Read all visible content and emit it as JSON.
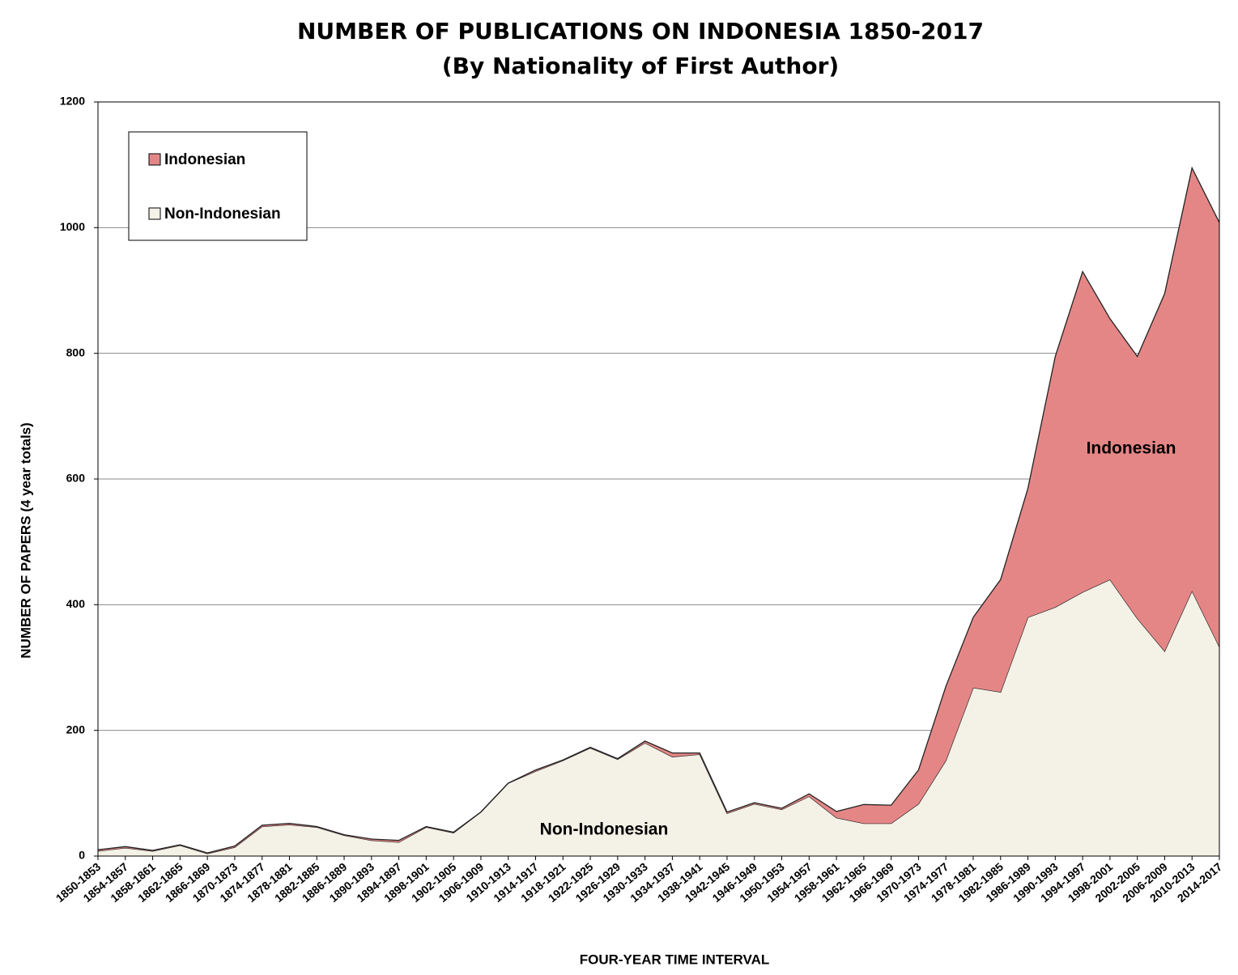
{
  "chart_data": {
    "type": "stacked-area",
    "title": "NUMBER OF PUBLICATIONS ON INDONESIA 1850-2017",
    "subtitle": "(By Nationality of First Author)",
    "x_label": "FOUR-YEAR TIME INTERVAL",
    "y_label": "NUMBER OF PAPERS (4 year totals)",
    "categories": [
      "1850-1853",
      "1854-1857",
      "1858-1861",
      "1862-1865",
      "1866-1869",
      "1870-1873",
      "1874-1877",
      "1878-1881",
      "1882-1885",
      "1886-1889",
      "1890-1893",
      "1894-1897",
      "1898-1901",
      "1902-1905",
      "1906-1909",
      "1910-1913",
      "1914-1917",
      "1918-1921",
      "1922-1925",
      "1926-1929",
      "1930-1933",
      "1934-1937",
      "1938-1941",
      "1942-1945",
      "1946-1949",
      "1950-1953",
      "1954-1957",
      "1958-1961",
      "1962-1965",
      "1966-1969",
      "1970-1973",
      "1974-1977",
      "1978-1981",
      "1982-1985",
      "1986-1989",
      "1990-1993",
      "1994-1997",
      "1998-2001",
      "2002-2005",
      "2006-2009",
      "2010-2013",
      "2014-2017"
    ],
    "series": [
      {
        "name": "Non-Indonesian",
        "color": "#f4f1e6",
        "values": [
          8,
          13,
          8,
          17,
          4,
          14,
          47,
          50,
          46,
          33,
          25,
          22,
          46,
          37,
          70,
          116,
          135,
          152,
          172,
          154,
          180,
          158,
          162,
          68,
          83,
          74,
          95,
          61,
          52,
          52,
          83,
          152,
          268,
          261,
          380,
          396,
          420,
          440,
          378,
          326,
          422,
          333
        ]
      },
      {
        "name": "Indonesian",
        "color": "#e58686",
        "values": [
          2,
          2,
          1,
          1,
          1,
          2,
          2,
          2,
          1,
          1,
          2,
          3,
          1,
          1,
          0,
          0,
          2,
          1,
          1,
          1,
          3,
          6,
          2,
          2,
          2,
          2,
          4,
          10,
          30,
          29,
          54,
          118,
          112,
          179,
          205,
          399,
          510,
          415,
          417,
          569,
          673,
          675
        ]
      }
    ],
    "annotations": [
      "Indonesian",
      "Non-Indonesian"
    ],
    "ylim": [
      0,
      1200
    ],
    "yticks": [
      0,
      200,
      400,
      600,
      800,
      1000,
      1200
    ],
    "grid": true
  }
}
